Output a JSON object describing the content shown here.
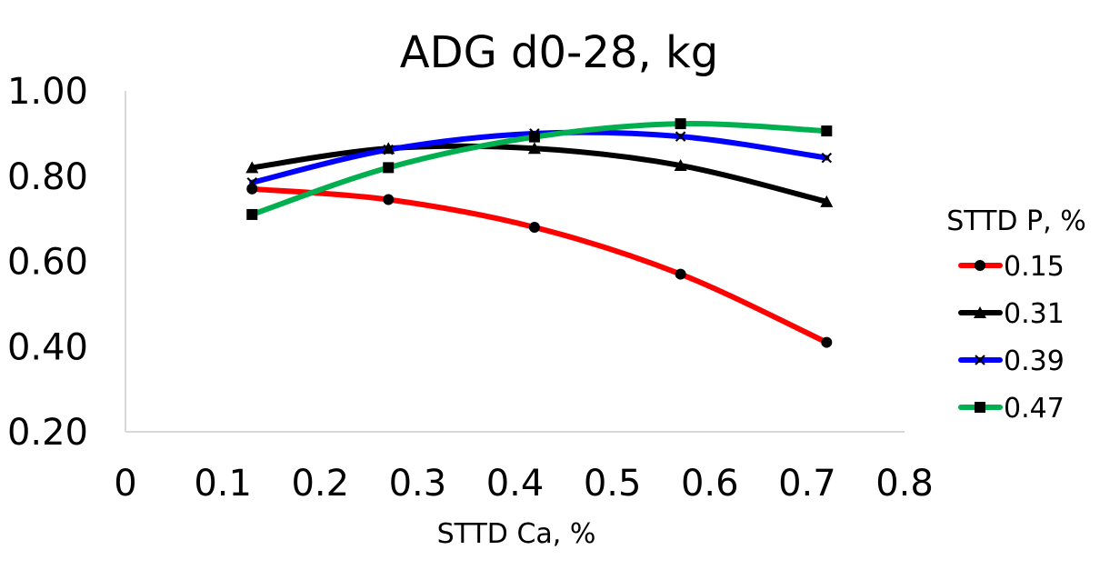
{
  "chart_data": {
    "type": "line",
    "title": "ADG d0-28, kg",
    "xlabel": "STTD Ca, %",
    "ylabel": "",
    "xlim": [
      0,
      0.8
    ],
    "ylim": [
      0.2,
      1.0
    ],
    "x_ticks": [
      "0",
      "0.1",
      "0.2",
      "0.3",
      "0.4",
      "0.5",
      "0.6",
      "0.7",
      "0.8"
    ],
    "y_ticks": [
      "0.20",
      "0.40",
      "0.60",
      "0.80",
      "1.00"
    ],
    "x": [
      0.13,
      0.27,
      0.42,
      0.57,
      0.72
    ],
    "legend_title": "STTD P, %",
    "legend_position": "right",
    "grid": false,
    "series": [
      {
        "name": "0.15",
        "color": "#ff0000",
        "marker": "circle",
        "values": [
          0.77,
          0.745,
          0.68,
          0.57,
          0.41
        ]
      },
      {
        "name": "0.31",
        "color": "#000000",
        "marker": "triangle",
        "values": [
          0.82,
          0.865,
          0.865,
          0.825,
          0.74
        ]
      },
      {
        "name": "0.39",
        "color": "#0000ff",
        "marker": "x",
        "values": [
          0.785,
          0.862,
          0.9,
          0.893,
          0.843
        ]
      },
      {
        "name": "0.47",
        "color": "#00b050",
        "marker": "square",
        "values": [
          0.71,
          0.82,
          0.892,
          0.923,
          0.906
        ]
      }
    ]
  }
}
